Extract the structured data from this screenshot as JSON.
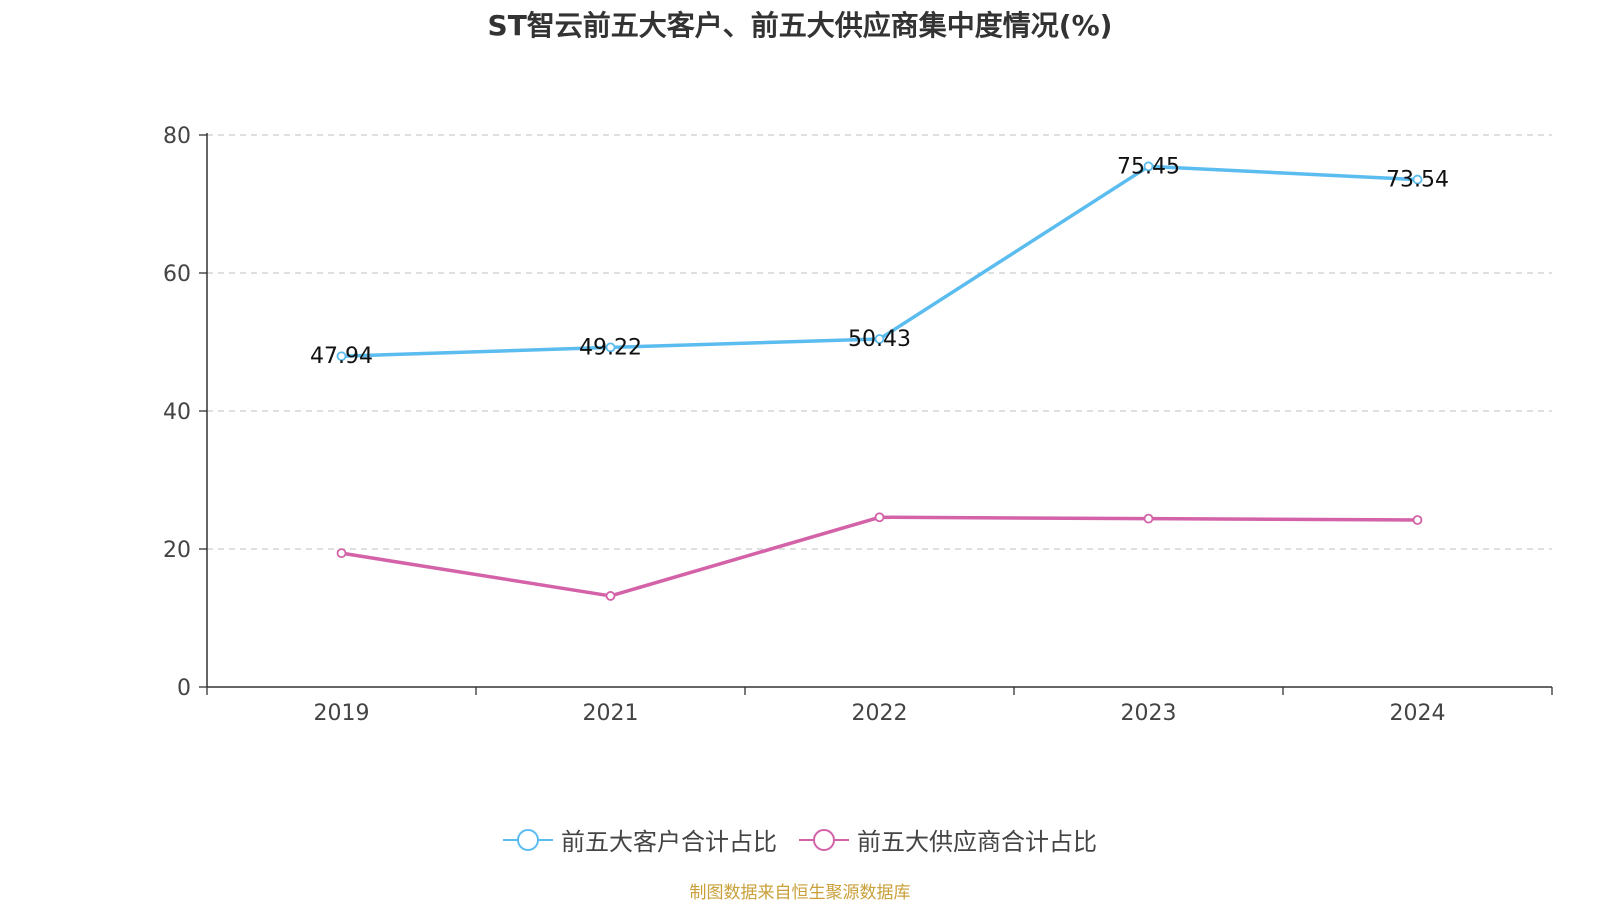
{
  "chart_data": {
    "type": "line",
    "title": "ST智云前五大客户、前五大供应商集中度情况(%)",
    "categories": [
      "2019",
      "2021",
      "2022",
      "2023",
      "2024"
    ],
    "series": [
      {
        "name": "前五大客户合计占比",
        "color": "#5bbcef",
        "values": [
          47.94,
          49.22,
          50.43,
          75.45,
          73.54
        ],
        "show_labels": true
      },
      {
        "name": "前五大供应商合计占比",
        "color": "#d462a8",
        "values": [
          19.4,
          13.2,
          24.6,
          24.4,
          24.2
        ],
        "show_labels": false
      }
    ],
    "ylim": [
      0,
      80
    ],
    "yticks": [
      0,
      20,
      40,
      60,
      80
    ],
    "grid": true,
    "legend_position": "bottom"
  },
  "source": "制图数据来自恒生聚源数据库"
}
